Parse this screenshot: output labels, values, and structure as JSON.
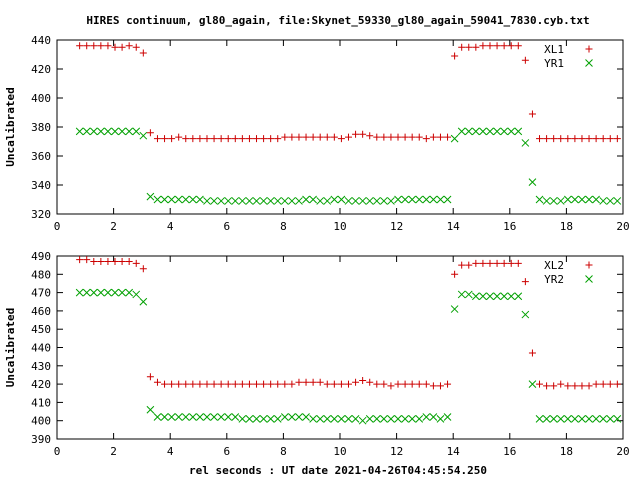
{
  "title": "HIRES continuum, gl80_again, file:Skynet_59330_gl80_again_59041_7830.cyb.txt",
  "xlabel": "rel seconds : UT date 2021-04-26T04:45:54.250",
  "colors": {
    "red": "#cc0000",
    "green": "#00a000"
  },
  "chart_data": [
    {
      "type": "scatter",
      "ylabel": "Uncalibrated",
      "xlim": [
        0,
        20
      ],
      "ylim": [
        320,
        440
      ],
      "xticks": [
        0,
        2,
        4,
        6,
        8,
        10,
        12,
        14,
        16,
        18,
        20
      ],
      "yticks": [
        320,
        340,
        360,
        380,
        400,
        420,
        440
      ],
      "legend_position": "top-right",
      "series": [
        {
          "name": "XL1",
          "marker": "plus",
          "color": "#cc0000",
          "x": [
            0.8,
            1.05,
            1.3,
            1.55,
            1.8,
            2.05,
            2.3,
            2.55,
            2.8,
            3.05,
            3.3,
            3.55,
            3.8,
            4.05,
            4.3,
            4.55,
            4.8,
            5.05,
            5.3,
            5.55,
            5.8,
            6.05,
            6.3,
            6.55,
            6.8,
            7.05,
            7.3,
            7.55,
            7.8,
            8.05,
            8.3,
            8.55,
            8.8,
            9.05,
            9.3,
            9.55,
            9.8,
            10.05,
            10.3,
            10.55,
            10.8,
            11.05,
            11.3,
            11.55,
            11.8,
            12.05,
            12.3,
            12.55,
            12.8,
            13.05,
            13.3,
            13.55,
            13.8,
            14.05,
            14.3,
            14.55,
            14.8,
            15.05,
            15.3,
            15.55,
            15.8,
            16.05,
            16.3,
            16.55,
            16.8,
            17.05,
            17.3,
            17.55,
            17.8,
            18.05,
            18.3,
            18.55,
            18.8,
            19.05,
            19.3,
            19.55,
            19.8
          ],
          "y": [
            436,
            436,
            436,
            436,
            436,
            435,
            435,
            436,
            435,
            431,
            376,
            372,
            372,
            372,
            373,
            372,
            372,
            372,
            372,
            372,
            372,
            372,
            372,
            372,
            372,
            372,
            372,
            372,
            372,
            373,
            373,
            373,
            373,
            373,
            373,
            373,
            373,
            372,
            373,
            375,
            375,
            374,
            373,
            373,
            373,
            373,
            373,
            373,
            373,
            372,
            373,
            373,
            373,
            429,
            435,
            435,
            435,
            436,
            436,
            436,
            436,
            436,
            436,
            426,
            389,
            372,
            372,
            372,
            372,
            372,
            372,
            372,
            372,
            372,
            372,
            372,
            372
          ],
          "x_pre": [
            0.8,
            1.05,
            1.3,
            1.55,
            1.8,
            2.05,
            2.3,
            2.55,
            2.8,
            3.05
          ]
        },
        {
          "name": "YR1",
          "marker": "cross",
          "color": "#00a000",
          "x": [
            0.8,
            1.05,
            1.3,
            1.55,
            1.8,
            2.05,
            2.3,
            2.55,
            2.8,
            3.05,
            3.3,
            3.55,
            3.8,
            4.05,
            4.3,
            4.55,
            4.8,
            5.05,
            5.3,
            5.55,
            5.8,
            6.05,
            6.3,
            6.55,
            6.8,
            7.05,
            7.3,
            7.55,
            7.8,
            8.05,
            8.3,
            8.55,
            8.8,
            9.05,
            9.3,
            9.55,
            9.8,
            10.05,
            10.3,
            10.55,
            10.8,
            11.05,
            11.3,
            11.55,
            11.8,
            12.05,
            12.3,
            12.55,
            12.8,
            13.05,
            13.3,
            13.55,
            13.8,
            14.05,
            14.3,
            14.55,
            14.8,
            15.05,
            15.3,
            15.55,
            15.8,
            16.05,
            16.3,
            16.55,
            16.8,
            17.05,
            17.3,
            17.55,
            17.8,
            18.05,
            18.3,
            18.55,
            18.8,
            19.05,
            19.3,
            19.55,
            19.8
          ],
          "y": [
            377,
            377,
            377,
            377,
            377,
            377,
            377,
            377,
            377,
            374,
            332,
            330,
            330,
            330,
            330,
            330,
            330,
            330,
            329,
            329,
            329,
            329,
            329,
            329,
            329,
            329,
            329,
            329,
            329,
            329,
            329,
            329,
            330,
            330,
            329,
            329,
            330,
            330,
            329,
            329,
            329,
            329,
            329,
            329,
            329,
            330,
            330,
            330,
            330,
            330,
            330,
            330,
            330,
            372,
            377,
            377,
            377,
            377,
            377,
            377,
            377,
            377,
            377,
            369,
            342,
            330,
            329,
            329,
            329,
            330,
            330,
            330,
            330,
            330,
            329,
            329,
            329
          ]
        }
      ]
    },
    {
      "type": "scatter",
      "ylabel": "Uncalibrated",
      "xlim": [
        0,
        20
      ],
      "ylim": [
        390,
        490
      ],
      "xticks": [
        0,
        2,
        4,
        6,
        8,
        10,
        12,
        14,
        16,
        18,
        20
      ],
      "yticks": [
        390,
        400,
        410,
        420,
        430,
        440,
        450,
        460,
        470,
        480,
        490
      ],
      "legend_position": "top-right",
      "series": [
        {
          "name": "XL2",
          "marker": "plus",
          "color": "#cc0000",
          "x": [
            0.8,
            1.05,
            1.3,
            1.55,
            1.8,
            2.05,
            2.3,
            2.55,
            2.8,
            3.05,
            3.3,
            3.55,
            3.8,
            4.05,
            4.3,
            4.55,
            4.8,
            5.05,
            5.3,
            5.55,
            5.8,
            6.05,
            6.3,
            6.55,
            6.8,
            7.05,
            7.3,
            7.55,
            7.8,
            8.05,
            8.3,
            8.55,
            8.8,
            9.05,
            9.3,
            9.55,
            9.8,
            10.05,
            10.3,
            10.55,
            10.8,
            11.05,
            11.3,
            11.55,
            11.8,
            12.05,
            12.3,
            12.55,
            12.8,
            13.05,
            13.3,
            13.55,
            13.8,
            14.05,
            14.3,
            14.55,
            14.8,
            15.05,
            15.3,
            15.55,
            15.8,
            16.05,
            16.3,
            16.55,
            16.8,
            17.05,
            17.3,
            17.55,
            17.8,
            18.05,
            18.3,
            18.55,
            18.8,
            19.05,
            19.3,
            19.55,
            19.8
          ],
          "y": [
            488,
            488,
            487,
            487,
            487,
            487,
            487,
            487,
            486,
            483,
            424,
            421,
            420,
            420,
            420,
            420,
            420,
            420,
            420,
            420,
            420,
            420,
            420,
            420,
            420,
            420,
            420,
            420,
            420,
            420,
            420,
            421,
            421,
            421,
            421,
            420,
            420,
            420,
            420,
            421,
            422,
            421,
            420,
            420,
            419,
            420,
            420,
            420,
            420,
            420,
            419,
            419,
            420,
            480,
            485,
            485,
            486,
            486,
            486,
            486,
            486,
            486,
            486,
            476,
            437,
            420,
            419,
            419,
            420,
            419,
            419,
            419,
            419,
            420,
            420,
            420,
            420
          ]
        },
        {
          "name": "YR2",
          "marker": "cross",
          "color": "#00a000",
          "x": [
            0.8,
            1.05,
            1.3,
            1.55,
            1.8,
            2.05,
            2.3,
            2.55,
            2.8,
            3.05,
            3.3,
            3.55,
            3.8,
            4.05,
            4.3,
            4.55,
            4.8,
            5.05,
            5.3,
            5.55,
            5.8,
            6.05,
            6.3,
            6.55,
            6.8,
            7.05,
            7.3,
            7.55,
            7.8,
            8.05,
            8.3,
            8.55,
            8.8,
            9.05,
            9.3,
            9.55,
            9.8,
            10.05,
            10.3,
            10.55,
            10.8,
            11.05,
            11.3,
            11.55,
            11.8,
            12.05,
            12.3,
            12.55,
            12.8,
            13.05,
            13.3,
            13.55,
            13.8,
            14.05,
            14.3,
            14.55,
            14.8,
            15.05,
            15.3,
            15.55,
            15.8,
            16.05,
            16.3,
            16.55,
            16.8,
            17.05,
            17.3,
            17.55,
            17.8,
            18.05,
            18.3,
            18.55,
            18.8,
            19.05,
            19.3,
            19.55,
            19.8
          ],
          "y": [
            470,
            470,
            470,
            470,
            470,
            470,
            470,
            470,
            469,
            465,
            406,
            402,
            402,
            402,
            402,
            402,
            402,
            402,
            402,
            402,
            402,
            402,
            402,
            401,
            401,
            401,
            401,
            401,
            401,
            402,
            402,
            402,
            402,
            401,
            401,
            401,
            401,
            401,
            401,
            401,
            400,
            401,
            401,
            401,
            401,
            401,
            401,
            401,
            401,
            402,
            402,
            401,
            402,
            461,
            469,
            469,
            468,
            468,
            468,
            468,
            468,
            468,
            468,
            458,
            420,
            401,
            401,
            401,
            401,
            401,
            401,
            401,
            401,
            401,
            401,
            401,
            401
          ]
        }
      ]
    }
  ]
}
